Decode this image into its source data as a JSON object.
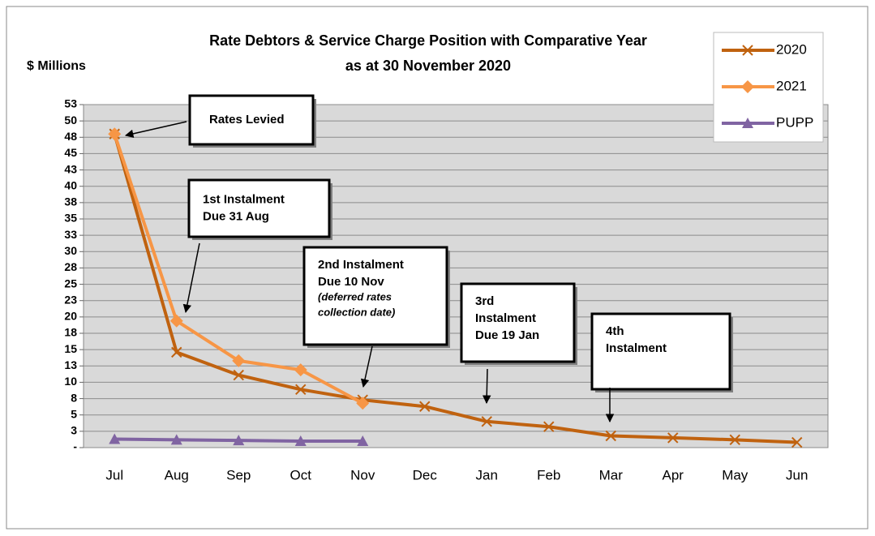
{
  "chart_data": {
    "type": "line",
    "title": [
      "Rate Debtors & Service Charge Position with Comparative Year",
      "as at 30 November 2020"
    ],
    "y_label": "$ Millions",
    "categories": [
      "Jul",
      "Aug",
      "Sep",
      "Oct",
      "Nov",
      "Dec",
      "Jan",
      "Feb",
      "Mar",
      "Apr",
      "May",
      "Jun"
    ],
    "series": [
      {
        "name": "2020",
        "color": "#c0620f",
        "marker": "x",
        "values": [
          48.0,
          14.6,
          11.1,
          8.9,
          7.3,
          6.3,
          4.0,
          3.2,
          1.8,
          1.5,
          1.2,
          0.8
        ]
      },
      {
        "name": "2021",
        "color": "#f79646",
        "marker": "diamond",
        "values": [
          48.0,
          19.4,
          13.3,
          11.9,
          6.8,
          null,
          null,
          null,
          null,
          null,
          null,
          null
        ]
      },
      {
        "name": "PUPP",
        "color": "#8064a2",
        "marker": "triangle",
        "values": [
          1.3,
          1.2,
          1.1,
          1.0,
          1.0,
          null,
          null,
          null,
          null,
          null,
          null,
          null
        ]
      }
    ],
    "ylim": [
      0,
      52.5
    ],
    "yticks": [
      {
        "value": 0,
        "label": "-"
      },
      {
        "value": 2.5,
        "label": "3"
      },
      5,
      {
        "value": 7.5,
        "label": "8"
      },
      10,
      {
        "value": 12.5,
        "label": "13"
      },
      15,
      {
        "value": 17.5,
        "label": "18"
      },
      20,
      {
        "value": 22.5,
        "label": "23"
      },
      25,
      {
        "value": 27.5,
        "label": "28"
      },
      30,
      {
        "value": 32.5,
        "label": "33"
      },
      35,
      {
        "value": 37.5,
        "label": "38"
      },
      40,
      {
        "value": 42.5,
        "label": "43"
      },
      45,
      {
        "value": 47.5,
        "label": "48"
      },
      50,
      {
        "value": 52.5,
        "label": "53"
      }
    ],
    "grid": true,
    "legend": "top-right",
    "annotations": [
      {
        "lines": [
          "Rates Levied"
        ],
        "note": []
      },
      {
        "lines": [
          "1st Instalment",
          "Due 31 Aug"
        ],
        "note": []
      },
      {
        "lines": [
          "2nd Instalment",
          "Due 10 Nov"
        ],
        "note": [
          "(deferred rates",
          "collection date)"
        ]
      },
      {
        "lines": [
          "3rd",
          "Instalment",
          "Due 19 Jan"
        ],
        "note": []
      },
      {
        "lines": [
          "4th",
          "Instalment"
        ],
        "note": []
      }
    ]
  }
}
